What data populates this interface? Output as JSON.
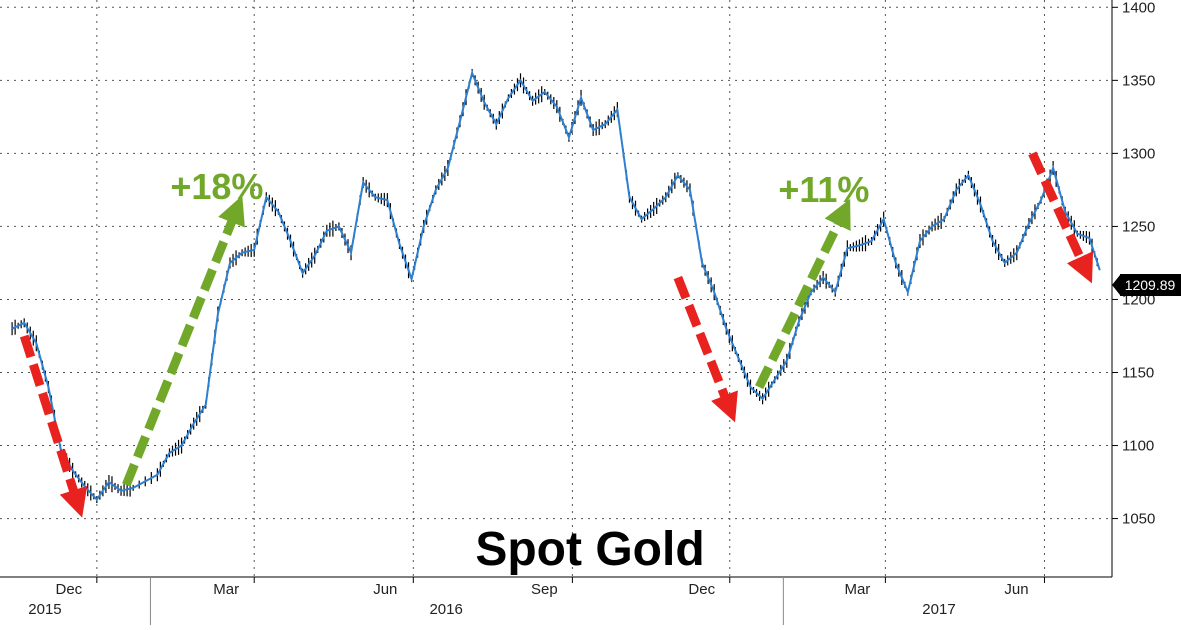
{
  "chart_data": {
    "type": "line",
    "title": "Spot Gold",
    "xlabel": "",
    "ylabel": "",
    "ylim": [
      1010,
      1405
    ],
    "y_ticks": [
      1050,
      1100,
      1150,
      1200,
      1250,
      1300,
      1350,
      1400
    ],
    "x_month_ticks": [
      "Dec",
      "Mar",
      "Jun",
      "Sep",
      "Dec",
      "Mar",
      "Jun"
    ],
    "x_year_labels": [
      "2015",
      "2016",
      "2017"
    ],
    "last_price_label": "1209.89",
    "last_price": 1209.89,
    "grid": true,
    "annotations": [
      {
        "text": "+18%",
        "kind": "rise",
        "color": "#72a82a",
        "from": [
          "2015-12-18",
          1073
        ],
        "to": [
          "2016-02-20",
          1262
        ]
      },
      {
        "text": "+11%",
        "kind": "rise",
        "color": "#72a82a",
        "from": [
          "2016-12-18",
          1140
        ],
        "to": [
          "2017-02-05",
          1260
        ]
      },
      {
        "text": "",
        "kind": "fall",
        "color": "#e8231f",
        "from": [
          "2015-10-20",
          1175
        ],
        "to": [
          "2015-11-20",
          1060
        ]
      },
      {
        "text": "",
        "kind": "fall",
        "color": "#e8231f",
        "from": [
          "2016-11-01",
          1215
        ],
        "to": [
          "2016-12-01",
          1125
        ]
      },
      {
        "text": "",
        "kind": "fall",
        "color": "#e8231f",
        "from": [
          "2017-05-25",
          1300
        ],
        "to": [
          "2017-06-25",
          1220
        ]
      }
    ],
    "series": [
      {
        "x": [
          "2015-10-13",
          "2015-10-20",
          "2015-10-27",
          "2015-11-03",
          "2015-11-10",
          "2015-11-17",
          "2015-11-24",
          "2015-12-01",
          "2015-12-08",
          "2015-12-15",
          "2015-12-22",
          "2016-01-05",
          "2016-01-12",
          "2016-01-19",
          "2016-01-26",
          "2016-02-02",
          "2016-02-09",
          "2016-02-16",
          "2016-02-23",
          "2016-03-01",
          "2016-03-08",
          "2016-03-15",
          "2016-03-22",
          "2016-03-29",
          "2016-04-05",
          "2016-04-12",
          "2016-04-19",
          "2016-04-26",
          "2016-05-03",
          "2016-05-10",
          "2016-05-17",
          "2016-05-24",
          "2016-05-31",
          "2016-06-07",
          "2016-06-14",
          "2016-06-21",
          "2016-06-28",
          "2016-07-05",
          "2016-07-12",
          "2016-07-19",
          "2016-07-26",
          "2016-08-02",
          "2016-08-09",
          "2016-08-16",
          "2016-08-23",
          "2016-08-30",
          "2016-09-06",
          "2016-09-13",
          "2016-09-20",
          "2016-09-27",
          "2016-10-04",
          "2016-10-11",
          "2016-10-18",
          "2016-10-25",
          "2016-11-01",
          "2016-11-08",
          "2016-11-15",
          "2016-11-22",
          "2016-11-29",
          "2016-12-06",
          "2016-12-13",
          "2016-12-20",
          "2016-12-27",
          "2017-01-03",
          "2017-01-10",
          "2017-01-17",
          "2017-01-24",
          "2017-01-31",
          "2017-02-07",
          "2017-02-14",
          "2017-02-21",
          "2017-02-28",
          "2017-03-07",
          "2017-03-14",
          "2017-03-21",
          "2017-03-28",
          "2017-04-04",
          "2017-04-11",
          "2017-04-18",
          "2017-04-25",
          "2017-05-02",
          "2017-05-09",
          "2017-05-16",
          "2017-05-23",
          "2017-05-30",
          "2017-06-06",
          "2017-06-13",
          "2017-06-20",
          "2017-06-27",
          "2017-07-03"
        ],
        "values": [
          1180,
          1184,
          1170,
          1140,
          1098,
          1083,
          1072,
          1063,
          1075,
          1069,
          1071,
          1080,
          1095,
          1100,
          1115,
          1128,
          1190,
          1225,
          1232,
          1234,
          1270,
          1260,
          1240,
          1218,
          1230,
          1247,
          1250,
          1232,
          1280,
          1270,
          1268,
          1238,
          1214,
          1250,
          1275,
          1290,
          1322,
          1355,
          1335,
          1320,
          1338,
          1350,
          1336,
          1342,
          1332,
          1311,
          1338,
          1316,
          1320,
          1330,
          1270,
          1255,
          1262,
          1270,
          1285,
          1275,
          1225,
          1205,
          1180,
          1160,
          1140,
          1132,
          1145,
          1158,
          1185,
          1205,
          1215,
          1205,
          1235,
          1237,
          1240,
          1255,
          1225,
          1205,
          1240,
          1250,
          1255,
          1275,
          1285,
          1265,
          1240,
          1225,
          1232,
          1252,
          1268,
          1290,
          1260,
          1245,
          1242,
          1220
        ]
      }
    ]
  }
}
